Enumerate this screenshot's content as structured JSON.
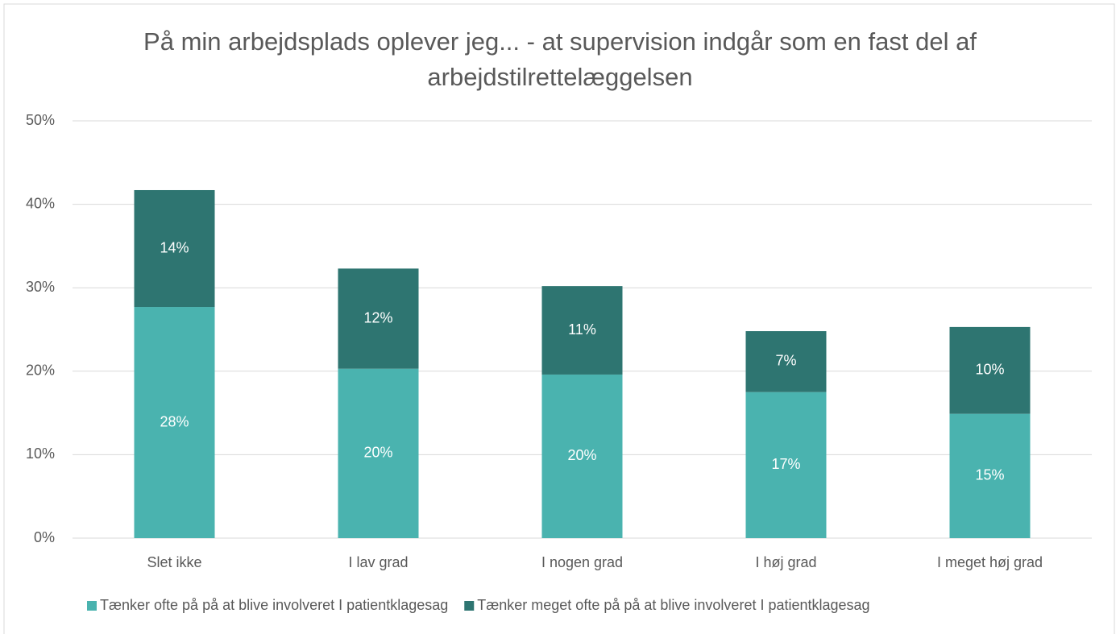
{
  "chart_data": {
    "type": "stacked_bar",
    "title": "På min arbejdsplads oplever jeg... - at supervision indgår som en fast del af arbejdstilrettelæggelsen",
    "categories": [
      "Slet ikke",
      "I lav grad",
      "I nogen grad",
      "I høj grad",
      "I meget høj grad"
    ],
    "series": [
      {
        "name": "Tænker ofte på på at blive involveret I patientklagesag",
        "color": "#4ab3af",
        "values": [
          27.7,
          20.3,
          19.6,
          17.5,
          14.9
        ],
        "value_labels": [
          "28%",
          "20%",
          "20%",
          "17%",
          "15%"
        ]
      },
      {
        "name": "Tænker meget ofte på på at blive involveret I patientklagesag",
        "color": "#2e7571",
        "values": [
          14.0,
          12.0,
          10.6,
          7.3,
          10.4
        ],
        "value_labels": [
          "14%",
          "12%",
          "11%",
          "7%",
          "10%"
        ]
      }
    ],
    "ylim": [
      0,
      50
    ],
    "yticks": [
      {
        "value": 0,
        "label": "0%"
      },
      {
        "value": 10,
        "label": "10%"
      },
      {
        "value": 20,
        "label": "20%"
      },
      {
        "value": 30,
        "label": "30%"
      },
      {
        "value": 40,
        "label": "40%"
      },
      {
        "value": 50,
        "label": "50%"
      }
    ],
    "grid": true,
    "legend": "bottom"
  }
}
